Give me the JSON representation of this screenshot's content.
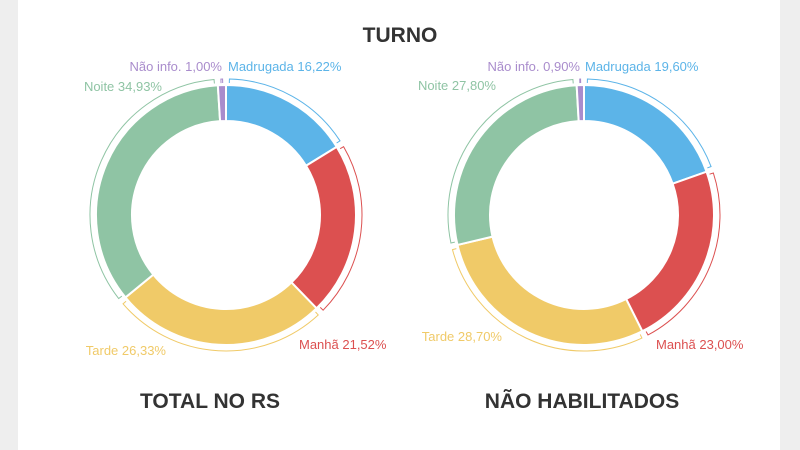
{
  "title": "TURNO",
  "chart_data": {
    "type": "pie",
    "variant": "donut",
    "title": "TURNO",
    "charts": [
      {
        "subtitle": "TOTAL NO RS",
        "slices": [
          {
            "label": "Madrugada 16,22%",
            "value": 16.22,
            "color": "#5cb4e8"
          },
          {
            "label": "Manhã 21,52%",
            "value": 21.52,
            "color": "#dc5050"
          },
          {
            "label": "Tarde 26,33%",
            "value": 26.33,
            "color": "#f0ca68"
          },
          {
            "label": "Noite 34,93%",
            "value": 34.93,
            "color": "#8fc4a4"
          },
          {
            "label": "Não info. 1,00%",
            "value": 1.0,
            "color": "#a98ccc"
          }
        ]
      },
      {
        "subtitle": "NÃO HABILITADOS",
        "slices": [
          {
            "label": "Madrugada 19,60%",
            "value": 19.6,
            "color": "#5cb4e8"
          },
          {
            "label": "Manhã 23,00%",
            "value": 23.0,
            "color": "#dc5050"
          },
          {
            "label": "Tarde 28,70%",
            "value": 28.7,
            "color": "#f0ca68"
          },
          {
            "label": "Noite 27,80%",
            "value": 27.8,
            "color": "#8fc4a4"
          },
          {
            "label": "Não info. 0,90%",
            "value": 0.9,
            "color": "#a98ccc"
          }
        ]
      }
    ]
  }
}
